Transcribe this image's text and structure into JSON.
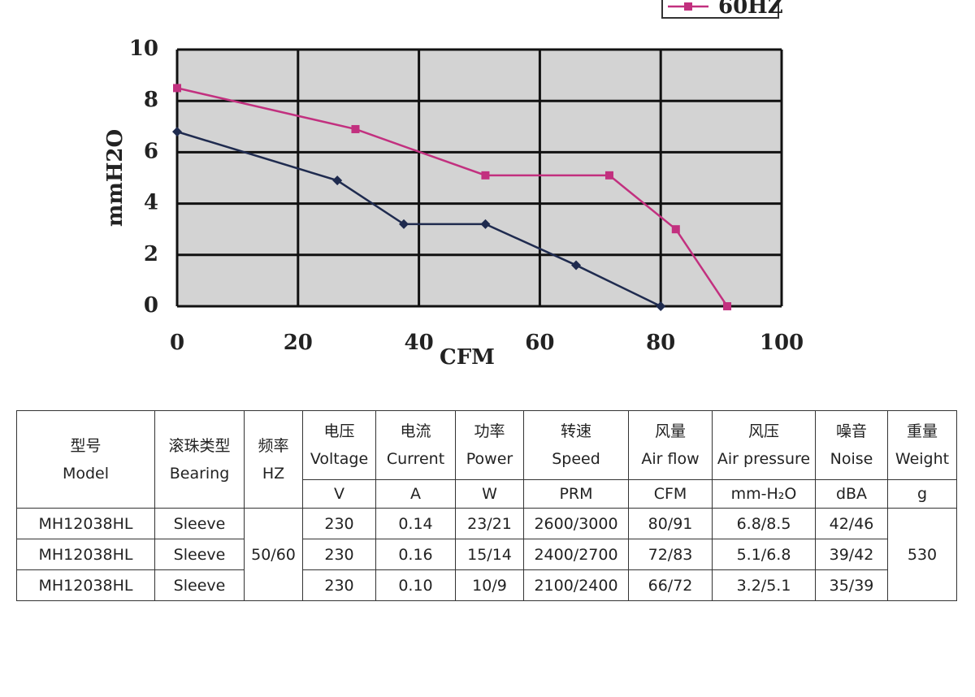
{
  "chart_data": {
    "type": "line",
    "x_label": "CFM",
    "y_label": "mmH2O",
    "xlim": [
      0,
      100
    ],
    "xticks": [
      0,
      20,
      40,
      60,
      80,
      100
    ],
    "ylim": [
      0,
      10
    ],
    "yticks": [
      0,
      2,
      4,
      6,
      8,
      10
    ],
    "grid": true,
    "legend": "top-right",
    "series": [
      {
        "color": "#1f2b4f",
        "marker": "diamond",
        "x": [
          0,
          26.5,
          37.5,
          51,
          66,
          80
        ],
        "values": [
          6.8,
          4.9,
          3.2,
          3.2,
          1.6,
          0
        ]
      },
      {
        "name": "60HZ",
        "color": "#c2307f",
        "marker": "square",
        "x": [
          0,
          29.5,
          51,
          71.5,
          82.5,
          91
        ],
        "values": [
          8.5,
          6.9,
          5.1,
          5.1,
          3.0,
          0
        ]
      }
    ]
  },
  "table": {
    "columns": [
      {
        "zh": "型号",
        "en": "Model"
      },
      {
        "zh": "滚珠类型",
        "en": "Bearing"
      },
      {
        "zh": "频率",
        "en": "HZ"
      },
      {
        "zh": "电压",
        "en": "Voltage",
        "unit": "V"
      },
      {
        "zh": "电流",
        "en": "Current",
        "unit": "A"
      },
      {
        "zh": "功率",
        "en": "Power",
        "unit": "W"
      },
      {
        "zh": "转速",
        "en": "Speed",
        "unit": "PRM"
      },
      {
        "zh": "风量",
        "en": "Air flow",
        "unit": "CFM"
      },
      {
        "zh": "风压",
        "en": "Air pressure",
        "unit": "mm-H₂O"
      },
      {
        "zh": "噪音",
        "en": "Noise",
        "unit": "dBA"
      },
      {
        "zh": "重量",
        "en": "Weight",
        "unit": "g"
      }
    ],
    "frequency": "50/60",
    "weight": "530",
    "rows": [
      [
        "MH12038HL",
        "Sleeve",
        "230",
        "0.14",
        "23/21",
        "2600/3000",
        "80/91",
        "6.8/8.5",
        "42/46"
      ],
      [
        "MH12038HL",
        "Sleeve",
        "230",
        "0.16",
        "15/14",
        "2400/2700",
        "72/83",
        "5.1/6.8",
        "39/42"
      ],
      [
        "MH12038HL",
        "Sleeve",
        "230",
        "0.10",
        "10/9",
        "2100/2400",
        "66/72",
        "3.2/5.1",
        "35/39"
      ]
    ]
  }
}
